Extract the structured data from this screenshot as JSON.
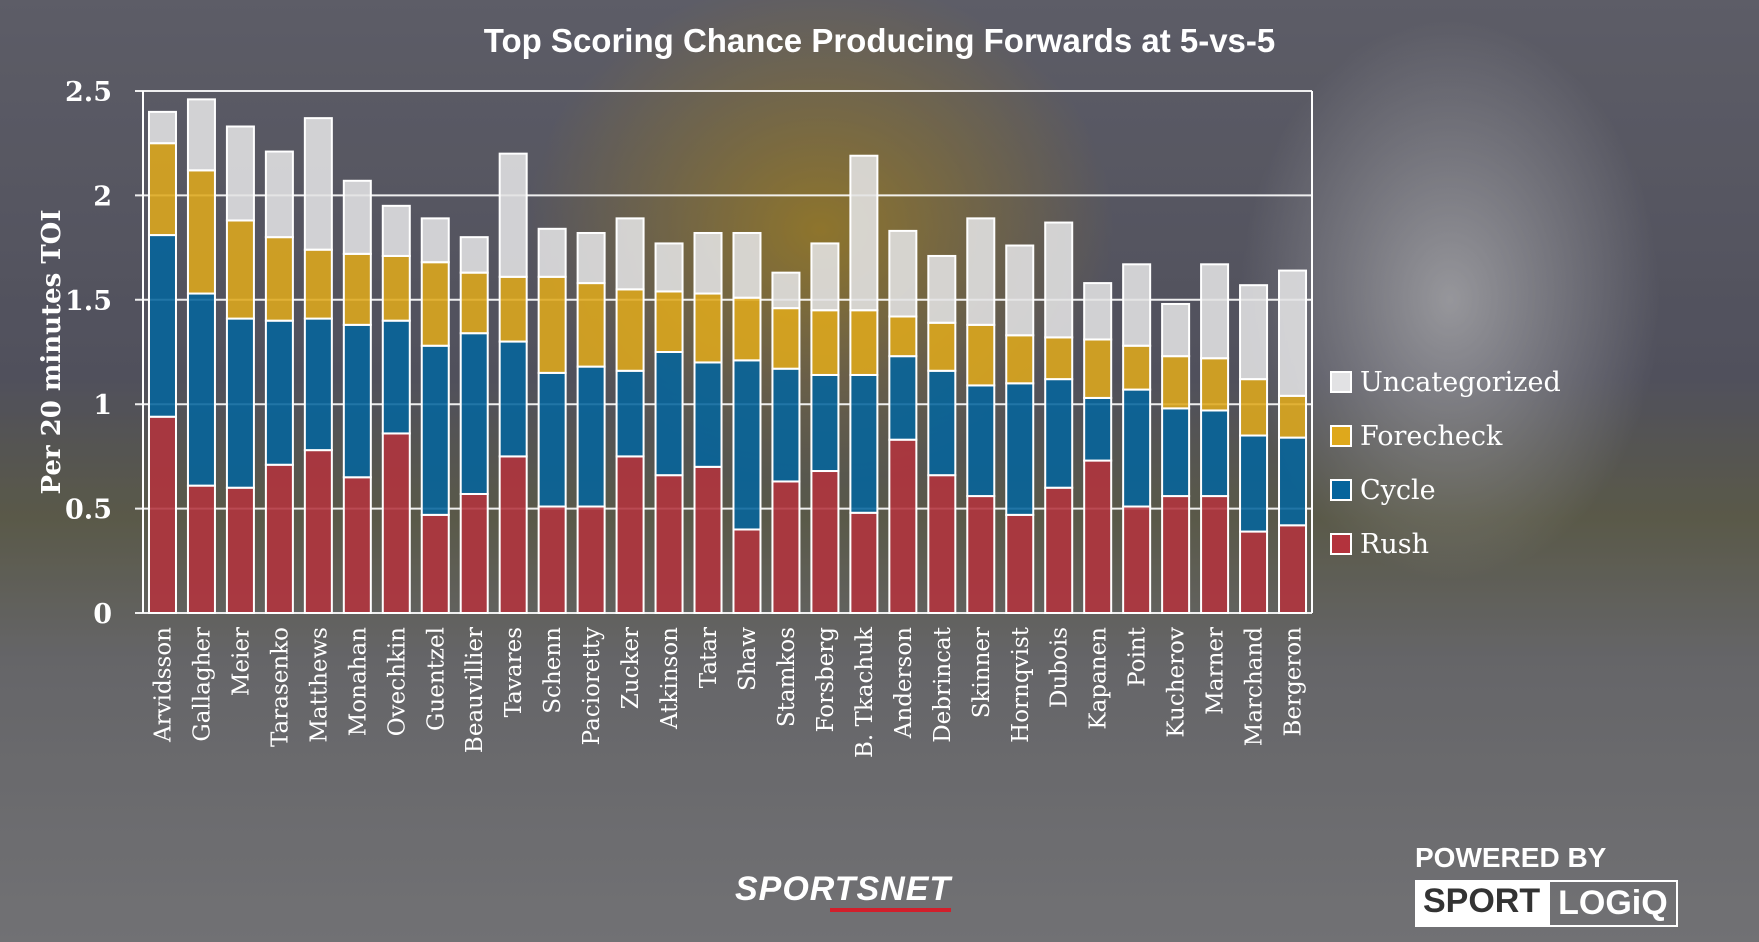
{
  "chart_data": {
    "type": "bar",
    "stacked": true,
    "title": "Top Scoring Chance Producing Forwards at 5-vs-5",
    "xlabel": "",
    "ylabel": "Per 20 minutes TOI",
    "ylim": [
      0,
      2.5
    ],
    "yticks": [
      "0",
      "0.5",
      "1",
      "1.5",
      "2",
      "2.5"
    ],
    "grid": true,
    "legend_position": "right",
    "categories": [
      "Arvidsson",
      "Gallagher",
      "Meier",
      "Tarasenko",
      "Matthews",
      "Monahan",
      "Ovechkin",
      "Guentzel",
      "Beauvillier",
      "Tavares",
      "Schenn",
      "Pacioretty",
      "Zucker",
      "Atkinson",
      "Tatar",
      "Shaw",
      "Stamkos",
      "Forsberg",
      "B. Tkachuk",
      "Anderson",
      "Debrincat",
      "Skinner",
      "Hornqvist",
      "Dubois",
      "Kapanen",
      "Point",
      "Kucherov",
      "Marner",
      "Marchand",
      "Bergeron"
    ],
    "series": [
      {
        "name": "Rush",
        "color": "#b3333d",
        "values": [
          0.94,
          0.61,
          0.6,
          0.71,
          0.78,
          0.65,
          0.86,
          0.47,
          0.57,
          0.75,
          0.51,
          0.51,
          0.75,
          0.66,
          0.7,
          0.4,
          0.63,
          0.68,
          0.48,
          0.83,
          0.66,
          0.56,
          0.47,
          0.6,
          0.73,
          0.51,
          0.56,
          0.56,
          0.39,
          0.42
        ]
      },
      {
        "name": "Cycle",
        "color": "#05649c",
        "values": [
          0.87,
          0.92,
          0.81,
          0.69,
          0.63,
          0.73,
          0.54,
          0.81,
          0.77,
          0.55,
          0.64,
          0.67,
          0.41,
          0.59,
          0.5,
          0.81,
          0.54,
          0.46,
          0.66,
          0.4,
          0.5,
          0.53,
          0.63,
          0.52,
          0.3,
          0.56,
          0.42,
          0.41,
          0.46,
          0.42
        ]
      },
      {
        "name": "Forecheck",
        "color": "#dea81c",
        "values": [
          0.44,
          0.59,
          0.47,
          0.4,
          0.33,
          0.34,
          0.31,
          0.4,
          0.29,
          0.31,
          0.46,
          0.4,
          0.39,
          0.29,
          0.33,
          0.3,
          0.29,
          0.31,
          0.31,
          0.19,
          0.23,
          0.29,
          0.23,
          0.2,
          0.28,
          0.21,
          0.25,
          0.25,
          0.27,
          0.2
        ]
      },
      {
        "name": "Uncategorized",
        "color": "#e2e2e4",
        "values": [
          0.15,
          0.34,
          0.45,
          0.41,
          0.63,
          0.35,
          0.24,
          0.21,
          0.17,
          0.59,
          0.23,
          0.24,
          0.34,
          0.23,
          0.29,
          0.31,
          0.17,
          0.32,
          0.74,
          0.41,
          0.32,
          0.51,
          0.43,
          0.55,
          0.27,
          0.39,
          0.25,
          0.45,
          0.45,
          0.6
        ]
      }
    ]
  },
  "branding": {
    "sportsnet": "SPORTSNET",
    "powered_by": "POWERED BY",
    "sportlogiq_a": "SPORT",
    "sportlogiq_b": "LOGiQ"
  }
}
